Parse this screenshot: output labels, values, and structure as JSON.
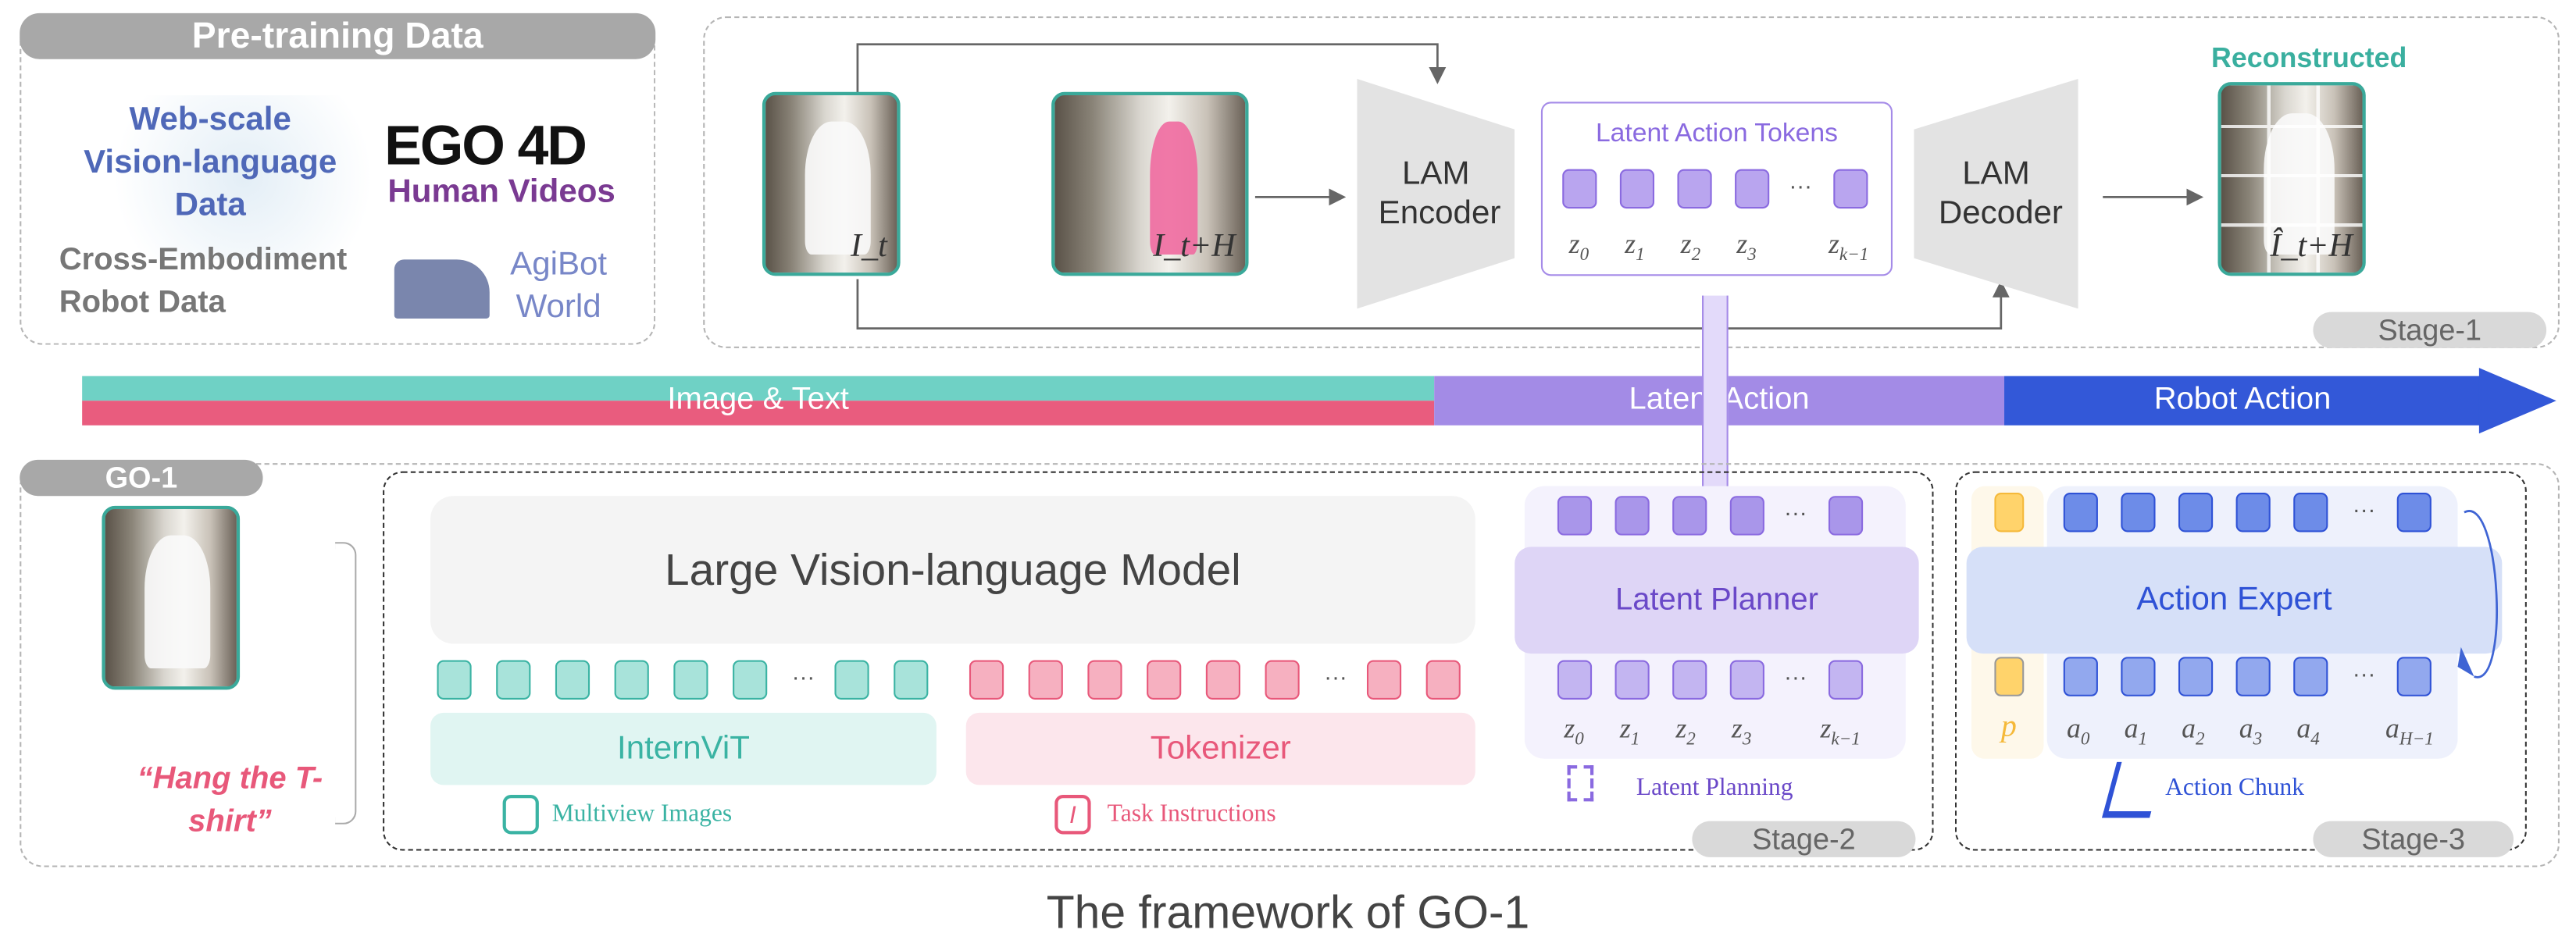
{
  "pretraining": {
    "title": "Pre-training Data",
    "web": "Web-scale Vision-language Data",
    "ego_logo": "EGO 4D",
    "human_videos": "Human Videos",
    "cross": "Cross-Embodiment Robot Data",
    "agibot": "AgiBot World"
  },
  "stage1": {
    "frame_t": "I_t",
    "frame_tH": "I_t+H",
    "encoder": "LAM Encoder",
    "tokens_title": "Latent Action Tokens",
    "decoder": "LAM Decoder",
    "reconstructed": "Reconstructed",
    "recon_frame": "Î_t+H",
    "stage_label": "Stage-1"
  },
  "flow_bar": {
    "segments": [
      "Image & Text",
      "Latent Action",
      "Robot Action"
    ],
    "colors": {
      "teal": "#6fd1c5",
      "pink": "#e95c7e",
      "purple": "#a38be6",
      "blue": "#3358d8"
    }
  },
  "go1": {
    "title": "GO-1",
    "instruction": "“Hang the T-shirt”",
    "vlm": "Large Vision-language Model",
    "internvit": "InternViT",
    "tokenizer": "Tokenizer",
    "multiview": "Multiview Images",
    "task_instr": "Task Instructions",
    "latent_planner": "Latent Planner",
    "latent_planning": "Latent Planning",
    "stage2": "Stage-2",
    "action_expert": "Action Expert",
    "action_chunk": "Action Chunk",
    "stage3": "Stage-3",
    "proprio": "p",
    "ellipsis": "···"
  },
  "symbols": {
    "z": [
      [
        "z",
        "0"
      ],
      [
        "z",
        "1"
      ],
      [
        "z",
        "2"
      ],
      [
        "z",
        "3"
      ],
      [
        "z",
        "k−1"
      ]
    ],
    "a": [
      [
        "a",
        "0"
      ],
      [
        "a",
        "1"
      ],
      [
        "a",
        "2"
      ],
      [
        "a",
        "3"
      ],
      [
        "a",
        "4"
      ],
      [
        "a",
        "H−1"
      ]
    ]
  },
  "caption": "The framework of GO-1"
}
